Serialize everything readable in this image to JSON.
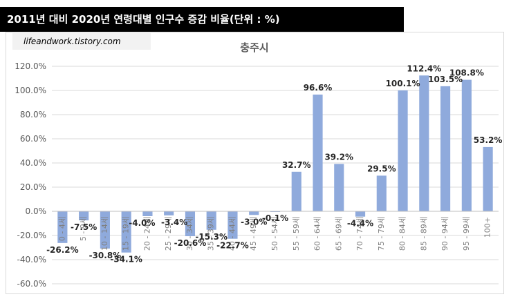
{
  "header": {
    "title": "2011년 대비 2020년 연령대별 인구수 증감 비율(단위 : %)"
  },
  "source": {
    "text": "lifeandwork.tistory.com"
  },
  "chart_data": {
    "type": "bar",
    "title": "충주시",
    "xlabel": "",
    "ylabel": "",
    "ylim": [
      -60,
      120
    ],
    "yticks": [
      "120.0%",
      "100.0%",
      "80.0%",
      "60.0%",
      "40.0%",
      "20.0%",
      "0.0%",
      "-20.0%",
      "-40.0%",
      "-60.0%"
    ],
    "categories": [
      "0 - 4세",
      "5 - 9세",
      "10 - 14세",
      "15 - 19세",
      "20 - 24세",
      "25 - 29세",
      "30 - 34세",
      "35 - 39세",
      "40 - 44세",
      "45 - 49세",
      "50 - 54세",
      "55 - 59세",
      "60 - 64세",
      "65 - 69세",
      "70 - 74세",
      "75 - 79세",
      "80 - 84세",
      "85 - 89세",
      "90 - 94세",
      "95 - 99세",
      "100+"
    ],
    "values": [
      -26.2,
      -7.5,
      -30.8,
      -34.1,
      -4.0,
      -3.4,
      -20.6,
      -15.3,
      -22.7,
      -3.0,
      -0.1,
      32.7,
      96.6,
      39.2,
      -4.4,
      29.5,
      100.1,
      112.4,
      103.5,
      108.8,
      53.2
    ],
    "value_labels": [
      "-26.2%",
      "-7.5%",
      "-30.8%",
      "-34.1%",
      "-4.0%",
      "-3.4%",
      "-20.6%",
      "-15.3%",
      "-22.7%",
      "-3.0%",
      "-0.1%",
      "32.7%",
      "96.6%",
      "39.2%",
      "-4.4%",
      "29.5%",
      "100.1%",
      "112.4%",
      "103.5%",
      "108.8%",
      "53.2%"
    ],
    "bar_color": "#8faadc",
    "grid": true,
    "legend": "none"
  }
}
